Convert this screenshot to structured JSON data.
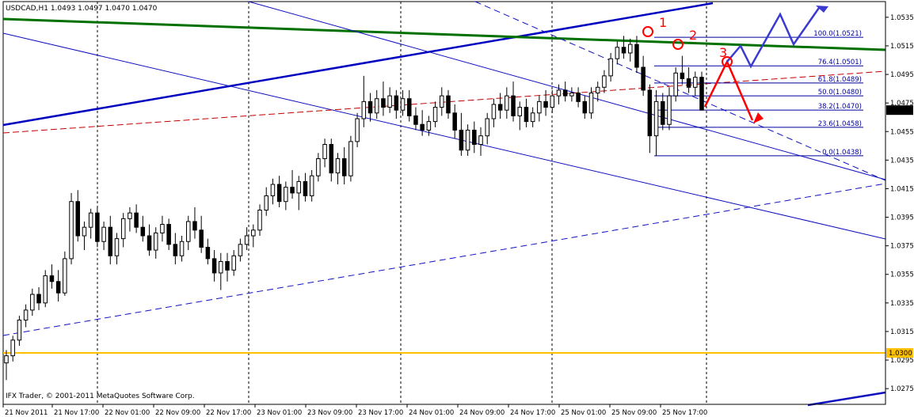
{
  "chart_data": {
    "type": "candlestick",
    "title": "USDCAD,H1  1.0493 1.0497 1.0470 1.0470",
    "symbol": "USDCAD",
    "timeframe": "H1",
    "ohlc": {
      "open": "1.0493",
      "high": "1.0497",
      "low": "1.0470",
      "close": "1.0470"
    },
    "copyright": "IFX Trader, © 2001-2011 MetaQuotes Software Corp.",
    "ylim": [
      1.0264,
      1.0546
    ],
    "price_ticks": [
      "1.0535",
      "1.0515",
      "1.0495",
      "1.0475",
      "1.0455",
      "1.0435",
      "1.0415",
      "1.0395",
      "1.0375",
      "1.0355",
      "1.0335",
      "1.0315",
      "1.0295",
      "1.0275"
    ],
    "x_ticks": [
      "21 Nov 2011",
      "21 Nov 17:00",
      "22 Nov 01:00",
      "22 Nov 09:00",
      "22 Nov 17:00",
      "23 Nov 01:00",
      "23 Nov 09:00",
      "23 Nov 17:00",
      "24 Nov 01:00",
      "24 Nov 09:00",
      "24 Nov 17:00",
      "25 Nov 01:00",
      "25 Nov 09:00",
      "25 Nov 17:00"
    ],
    "current_price": "1.0470",
    "level_line": "1.0300",
    "fibonacci": [
      {
        "label": "100.0(1.0521)",
        "price": 1.0521
      },
      {
        "label": "76.4(1.0501)",
        "price": 1.0501
      },
      {
        "label": "61.8(1.0489)",
        "price": 1.0489
      },
      {
        "label": "50.0(1.0480)",
        "price": 1.048
      },
      {
        "label": "38.2(1.0470)",
        "price": 1.047
      },
      {
        "label": "23.6(1.0458)",
        "price": 1.0458
      },
      {
        "label": "0.0(1.0438)",
        "price": 1.0438
      }
    ],
    "annotations": [
      "1",
      "2",
      "3"
    ],
    "colors": {
      "bull": "#ffffff",
      "bear": "#000000",
      "trend_blue": "#0000c0",
      "trend_green": "#007000",
      "ma_red": "#c00000",
      "level": "#ffc000",
      "fib": "#0000a0",
      "forecast_red": "#ff0000",
      "forecast_blue": "#3a3ad0"
    },
    "candles": [
      [
        1.0293,
        1.0302,
        1.0281,
        1.0298
      ],
      [
        1.0298,
        1.0312,
        1.0294,
        1.0309
      ],
      [
        1.0309,
        1.0326,
        1.0305,
        1.0323
      ],
      [
        1.0323,
        1.0334,
        1.0318,
        1.033
      ],
      [
        1.033,
        1.0345,
        1.0326,
        1.0341
      ],
      [
        1.0341,
        1.0346,
        1.033,
        1.0335
      ],
      [
        1.0335,
        1.0358,
        1.0332,
        1.0354
      ],
      [
        1.0354,
        1.0362,
        1.0345,
        1.035
      ],
      [
        1.035,
        1.0358,
        1.0336,
        1.0342
      ],
      [
        1.0342,
        1.0371,
        1.034,
        1.0366
      ],
      [
        1.0366,
        1.0412,
        1.0362,
        1.0406
      ],
      [
        1.0406,
        1.0414,
        1.0378,
        1.0382
      ],
      [
        1.0382,
        1.0392,
        1.0372,
        1.0388
      ],
      [
        1.0388,
        1.0401,
        1.038,
        1.0398
      ],
      [
        1.0398,
        1.0402,
        1.0374,
        1.0378
      ],
      [
        1.0378,
        1.0392,
        1.0372,
        1.0388
      ],
      [
        1.0388,
        1.0396,
        1.0362,
        1.0368
      ],
      [
        1.0368,
        1.0384,
        1.0362,
        1.038
      ],
      [
        1.038,
        1.0398,
        1.0374,
        1.0394
      ],
      [
        1.0394,
        1.0402,
        1.0385,
        1.0398
      ],
      [
        1.0398,
        1.0404,
        1.0384,
        1.0388
      ],
      [
        1.0388,
        1.0396,
        1.0378,
        1.0382
      ],
      [
        1.0382,
        1.039,
        1.0368,
        1.0372
      ],
      [
        1.0372,
        1.0388,
        1.0366,
        1.0384
      ],
      [
        1.0384,
        1.0396,
        1.0378,
        1.039
      ],
      [
        1.039,
        1.0394,
        1.0372,
        1.0376
      ],
      [
        1.0376,
        1.0384,
        1.0362,
        1.0368
      ],
      [
        1.0368,
        1.0382,
        1.0364,
        1.0378
      ],
      [
        1.0378,
        1.0396,
        1.0372,
        1.0392
      ],
      [
        1.0392,
        1.0402,
        1.038,
        1.0386
      ],
      [
        1.0386,
        1.0396,
        1.037,
        1.0374
      ],
      [
        1.0374,
        1.038,
        1.0362,
        1.0366
      ],
      [
        1.0366,
        1.0372,
        1.035,
        1.0356
      ],
      [
        1.0356,
        1.037,
        1.0344,
        1.0364
      ],
      [
        1.0364,
        1.037,
        1.035,
        1.0358
      ],
      [
        1.0358,
        1.0372,
        1.0354,
        1.0368
      ],
      [
        1.0368,
        1.038,
        1.0364,
        1.0376
      ],
      [
        1.0376,
        1.0388,
        1.0372,
        1.0382
      ],
      [
        1.0382,
        1.039,
        1.0374,
        1.0386
      ],
      [
        1.0386,
        1.0404,
        1.0382,
        1.04
      ],
      [
        1.04,
        1.0416,
        1.0396,
        1.041
      ],
      [
        1.041,
        1.0422,
        1.0404,
        1.0418
      ],
      [
        1.0418,
        1.0424,
        1.0402,
        1.0406
      ],
      [
        1.0406,
        1.042,
        1.04,
        1.0416
      ],
      [
        1.0416,
        1.0428,
        1.0408,
        1.0412
      ],
      [
        1.0412,
        1.0424,
        1.04,
        1.042
      ],
      [
        1.042,
        1.0426,
        1.0406,
        1.041
      ],
      [
        1.041,
        1.0428,
        1.0406,
        1.0424
      ],
      [
        1.0424,
        1.044,
        1.042,
        1.0436
      ],
      [
        1.0436,
        1.045,
        1.043,
        1.0446
      ],
      [
        1.0446,
        1.045,
        1.042,
        1.0426
      ],
      [
        1.0426,
        1.044,
        1.0418,
        1.0436
      ],
      [
        1.0436,
        1.0444,
        1.0418,
        1.0424
      ],
      [
        1.0424,
        1.0452,
        1.042,
        1.0448
      ],
      [
        1.0448,
        1.0468,
        1.0444,
        1.0464
      ],
      [
        1.0464,
        1.0494,
        1.0458,
        1.0476
      ],
      [
        1.0476,
        1.0482,
        1.0462,
        1.0468
      ],
      [
        1.0468,
        1.0484,
        1.0464,
        1.0478
      ],
      [
        1.0478,
        1.049,
        1.0466,
        1.0472
      ],
      [
        1.0472,
        1.0486,
        1.0468,
        1.048
      ],
      [
        1.048,
        1.0484,
        1.0464,
        1.047
      ],
      [
        1.047,
        1.0484,
        1.0466,
        1.0478
      ],
      [
        1.0478,
        1.0484,
        1.0462,
        1.0466
      ],
      [
        1.0466,
        1.0472,
        1.0456,
        1.046
      ],
      [
        1.046,
        1.047,
        1.0452,
        1.0456
      ],
      [
        1.0456,
        1.0466,
        1.0452,
        1.0462
      ],
      [
        1.0462,
        1.0476,
        1.0458,
        1.0472
      ],
      [
        1.0472,
        1.0486,
        1.0466,
        1.048
      ],
      [
        1.048,
        1.0484,
        1.0464,
        1.0468
      ],
      [
        1.0468,
        1.0474,
        1.045,
        1.0456
      ],
      [
        1.0456,
        1.0468,
        1.0438,
        1.0442
      ],
      [
        1.0442,
        1.046,
        1.0438,
        1.0456
      ],
      [
        1.0456,
        1.0462,
        1.044,
        1.0446
      ],
      [
        1.0446,
        1.0458,
        1.0438,
        1.0452
      ],
      [
        1.0452,
        1.0468,
        1.0446,
        1.0464
      ],
      [
        1.0464,
        1.0478,
        1.0458,
        1.0474
      ],
      [
        1.0474,
        1.0482,
        1.0464,
        1.047
      ],
      [
        1.047,
        1.0486,
        1.0464,
        1.048
      ],
      [
        1.048,
        1.049,
        1.0462,
        1.0466
      ],
      [
        1.0466,
        1.0476,
        1.0456,
        1.0472
      ],
      [
        1.0472,
        1.0478,
        1.0458,
        1.0462
      ],
      [
        1.0462,
        1.0472,
        1.0458,
        1.0468
      ],
      [
        1.0468,
        1.048,
        1.0462,
        1.0476
      ],
      [
        1.0476,
        1.0484,
        1.0466,
        1.0472
      ],
      [
        1.0472,
        1.0484,
        1.0468,
        1.048
      ],
      [
        1.048,
        1.0488,
        1.0474,
        1.0484
      ],
      [
        1.0484,
        1.049,
        1.0476,
        1.048
      ],
      [
        1.048,
        1.0486,
        1.0476,
        1.0482
      ],
      [
        1.0482,
        1.0486,
        1.0472,
        1.0476
      ],
      [
        1.0476,
        1.048,
        1.0464,
        1.0468
      ],
      [
        1.0468,
        1.0486,
        1.0464,
        1.0482
      ],
      [
        1.0482,
        1.049,
        1.0476,
        1.0486
      ],
      [
        1.0486,
        1.0498,
        1.0482,
        1.0494
      ],
      [
        1.0494,
        1.051,
        1.049,
        1.0506
      ],
      [
        1.0506,
        1.0518,
        1.0502,
        1.0514
      ],
      [
        1.0514,
        1.0522,
        1.0506,
        1.051
      ],
      [
        1.051,
        1.052,
        1.0504,
        1.0516
      ],
      [
        1.0516,
        1.0522,
        1.0496,
        1.05
      ],
      [
        1.05,
        1.0508,
        1.048,
        1.0484
      ],
      [
        1.0484,
        1.0488,
        1.044,
        1.0452
      ],
      [
        1.0452,
        1.0484,
        1.0438,
        1.0476
      ],
      [
        1.0476,
        1.0482,
        1.0456,
        1.046
      ],
      [
        1.046,
        1.0486,
        1.0456,
        1.048
      ],
      [
        1.048,
        1.05,
        1.0476,
        1.0496
      ],
      [
        1.0496,
        1.0508,
        1.0488,
        1.0492
      ],
      [
        1.0492,
        1.05,
        1.0482,
        1.0486
      ],
      [
        1.0486,
        1.0497,
        1.048,
        1.0493
      ],
      [
        1.0493,
        1.0497,
        1.047,
        1.047
      ]
    ]
  }
}
